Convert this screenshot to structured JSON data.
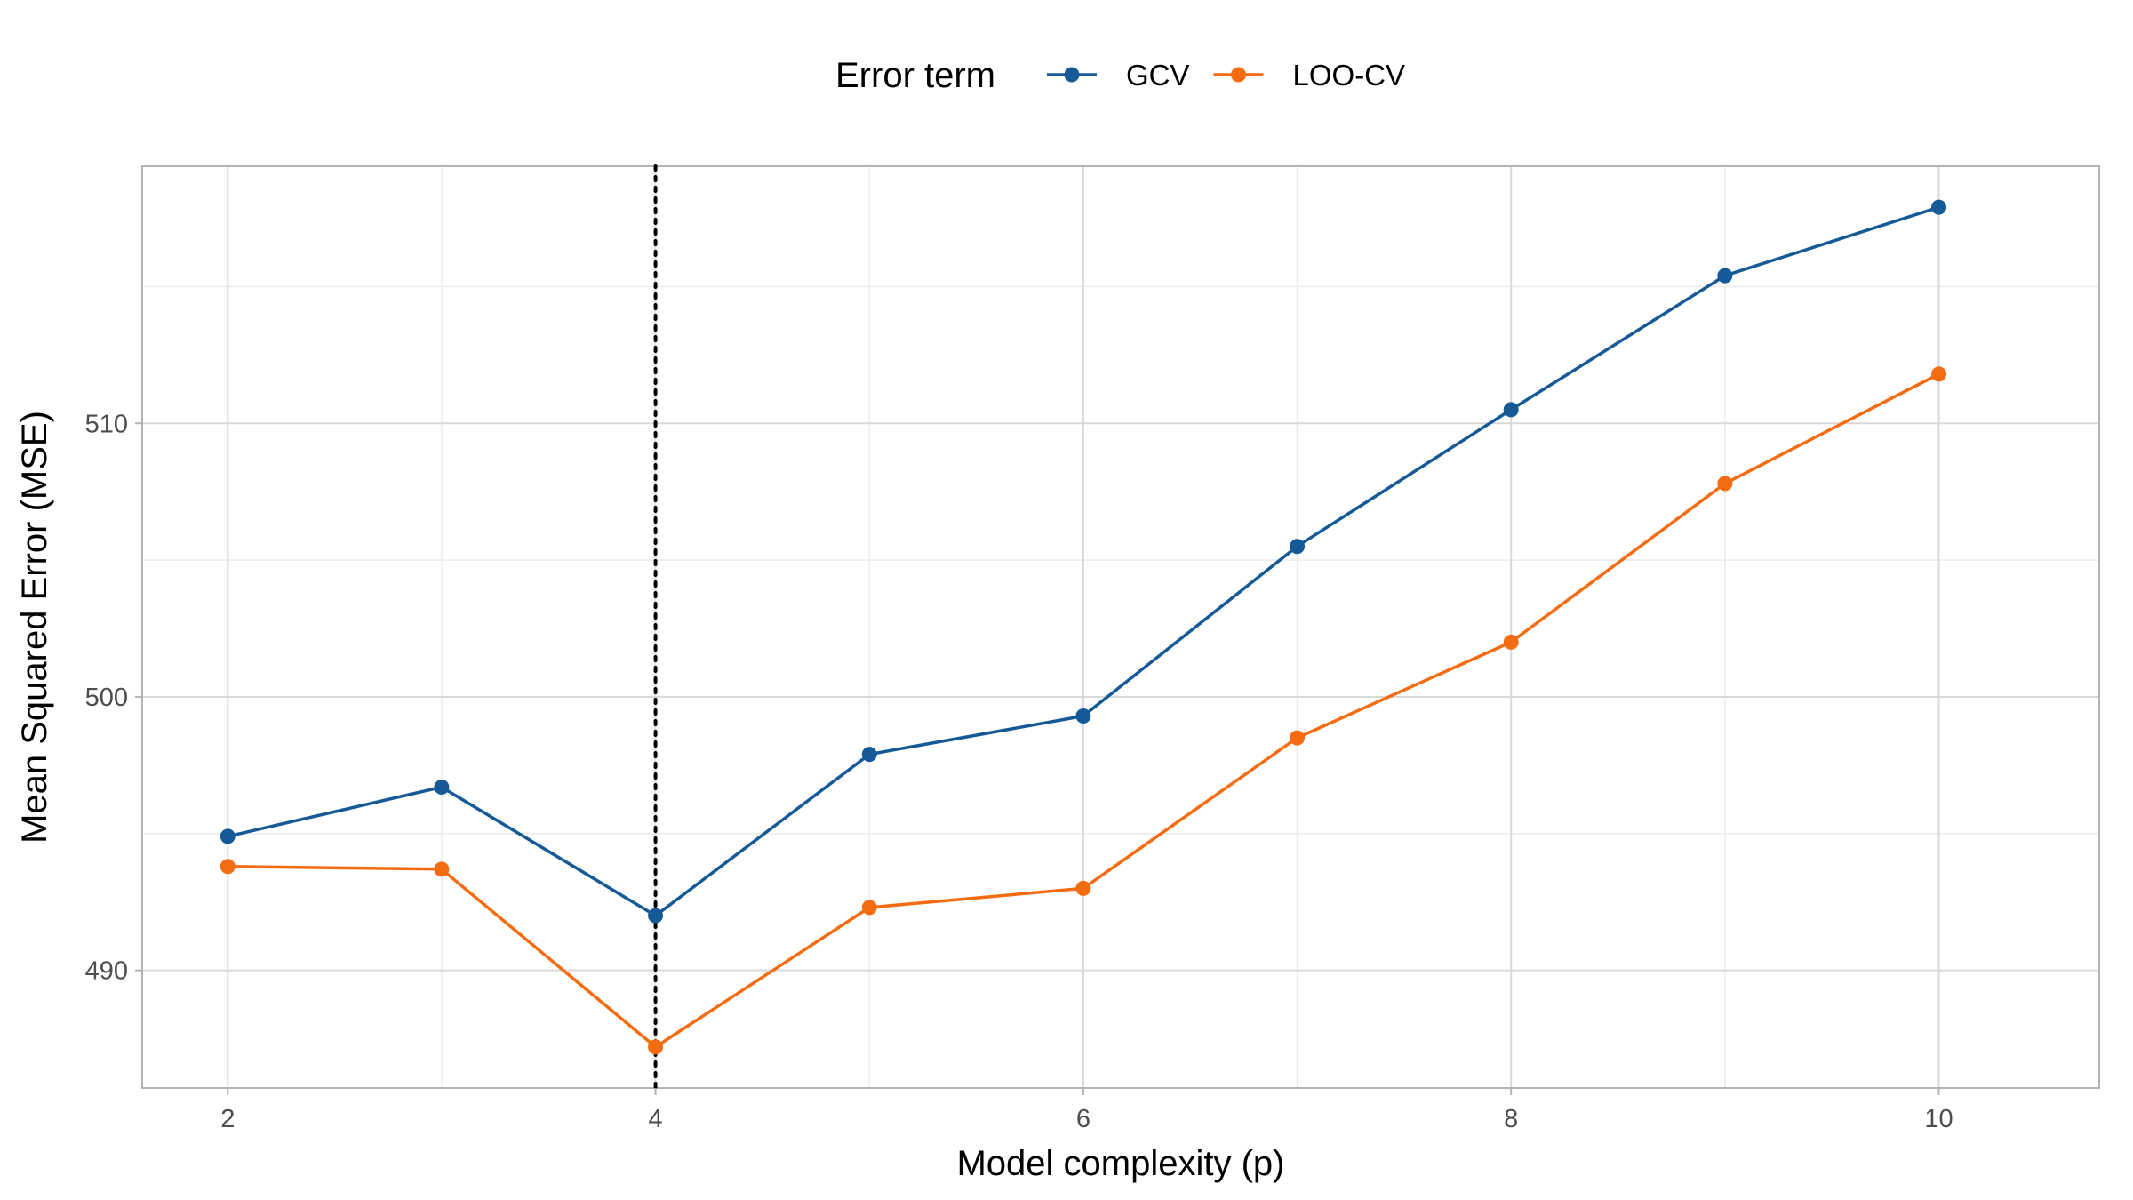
{
  "chart_data": {
    "type": "line",
    "x": [
      2,
      3,
      4,
      5,
      6,
      7,
      8,
      9,
      10
    ],
    "series": [
      {
        "name": "GCV",
        "color": "#155A96",
        "values": [
          494.9,
          496.7,
          492.0,
          497.9,
          499.3,
          505.5,
          510.5,
          515.4,
          517.9
        ]
      },
      {
        "name": "LOO-CV",
        "color": "#F46C12",
        "values": [
          493.8,
          493.7,
          487.2,
          492.3,
          493.0,
          498.5,
          502.0,
          507.8,
          511.8
        ]
      }
    ],
    "xlabel": "Model complexity (p)",
    "ylabel": "Mean Squared Error (MSE)",
    "xlim": [
      1.6,
      10.75
    ],
    "ylim": [
      485.7,
      519.4
    ],
    "xticks": [
      2,
      4,
      6,
      8,
      10
    ],
    "yticks": [
      490,
      500,
      510
    ],
    "x_minor_gridlines": [
      3,
      5,
      7,
      9
    ],
    "y_minor_gridlines": [
      495,
      505,
      515
    ],
    "reference_line": {
      "x": 4,
      "style": "dotted",
      "color": "#000000"
    },
    "legend": {
      "title": "Error term",
      "position": "top"
    },
    "grid": true
  }
}
